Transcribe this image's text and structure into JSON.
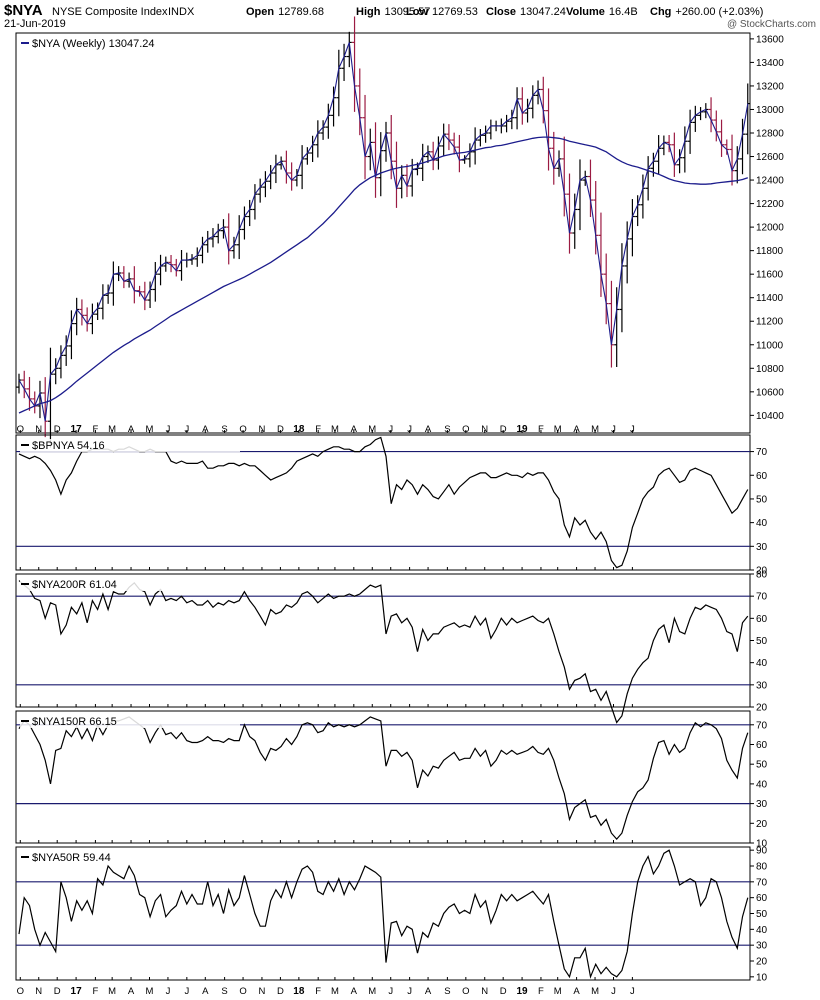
{
  "header": {
    "symbol": "$NYA",
    "name": "NYSE Composite Index",
    "exchange": "INDX",
    "date": "21-Jun-2019",
    "ohlc": [
      {
        "label": "Open",
        "value": "12789.68"
      },
      {
        "label": "High",
        "value": "13095.57"
      },
      {
        "label": "Low",
        "value": "12769.53"
      },
      {
        "label": "Close",
        "value": "13047.24"
      },
      {
        "label": "Volume",
        "value": "16.4B"
      },
      {
        "label": "Chg",
        "value": "+260.00 (+2.03%)"
      }
    ],
    "watermark": "@ StockCharts.com",
    "change_color": "#000000"
  },
  "colors": {
    "price_up": "#000000",
    "price_down": "#9b1b42",
    "moving_average": "#1c1c8c",
    "reference_line": "#1a1a6e",
    "indicator": "#000000"
  },
  "x_axis": {
    "labels": [
      {
        "text": "O",
        "week": 0.3,
        "bold": false
      },
      {
        "text": "N",
        "week": 4.6,
        "bold": false
      },
      {
        "text": "D",
        "week": 8.9,
        "bold": false
      },
      {
        "text": "17",
        "week": 13.3,
        "bold": true
      },
      {
        "text": "F",
        "week": 17.8,
        "bold": false
      },
      {
        "text": "M",
        "week": 21.7,
        "bold": false
      },
      {
        "text": "A",
        "week": 26.1,
        "bold": false
      },
      {
        "text": "M",
        "week": 30.4,
        "bold": false
      },
      {
        "text": "J",
        "week": 34.7,
        "bold": false
      },
      {
        "text": "J",
        "week": 39.1,
        "bold": false
      },
      {
        "text": "A",
        "week": 43.4,
        "bold": false
      },
      {
        "text": "S",
        "week": 47.9,
        "bold": false
      },
      {
        "text": "O",
        "week": 52.2,
        "bold": false
      },
      {
        "text": "N",
        "week": 56.6,
        "bold": false
      },
      {
        "text": "D",
        "week": 60.9,
        "bold": false
      },
      {
        "text": "18",
        "week": 65.2,
        "bold": true
      },
      {
        "text": "F",
        "week": 69.7,
        "bold": false
      },
      {
        "text": "M",
        "week": 73.6,
        "bold": false
      },
      {
        "text": "A",
        "week": 78.0,
        "bold": false
      },
      {
        "text": "M",
        "week": 82.3,
        "bold": false
      },
      {
        "text": "J",
        "week": 86.6,
        "bold": false
      },
      {
        "text": "J",
        "week": 91.0,
        "bold": false
      },
      {
        "text": "A",
        "week": 95.3,
        "bold": false
      },
      {
        "text": "S",
        "week": 99.8,
        "bold": false
      },
      {
        "text": "O",
        "week": 104.1,
        "bold": false
      },
      {
        "text": "N",
        "week": 108.5,
        "bold": false
      },
      {
        "text": "D",
        "week": 112.8,
        "bold": false
      },
      {
        "text": "19",
        "week": 117.2,
        "bold": true
      },
      {
        "text": "F",
        "week": 121.6,
        "bold": false
      },
      {
        "text": "M",
        "week": 125.5,
        "bold": false
      },
      {
        "text": "A",
        "week": 129.9,
        "bold": false
      },
      {
        "text": "M",
        "week": 134.2,
        "bold": false
      },
      {
        "text": "J",
        "week": 138.5,
        "bold": false
      },
      {
        "text": "J",
        "week": 142.9,
        "bold": false
      }
    ]
  },
  "chart_data": [
    {
      "type": "ohlc",
      "label": "$NYA (Weekly) 13047.24",
      "interval": "weekly",
      "y_ticks": [
        10400,
        10600,
        10800,
        11000,
        11200,
        11400,
        11600,
        11800,
        12000,
        12200,
        12400,
        12600,
        12800,
        13000,
        13200,
        13400,
        13600
      ],
      "ylim": [
        10250,
        13650
      ],
      "close": [
        10700,
        10625,
        10540,
        10480,
        10590,
        10350,
        10750,
        10800,
        10910,
        10990,
        11180,
        11300,
        11250,
        11180,
        11260,
        11310,
        11420,
        11440,
        11600,
        11610,
        11540,
        11560,
        11460,
        11450,
        11380,
        11470,
        11600,
        11670,
        11700,
        11680,
        11630,
        11720,
        11720,
        11730,
        11760,
        11850,
        11900,
        11920,
        11970,
        12000,
        11800,
        11850,
        11980,
        12090,
        12150,
        12280,
        12340,
        12390,
        12460,
        12530,
        12560,
        12460,
        12400,
        12440,
        12580,
        12630,
        12700,
        12800,
        12850,
        12950,
        13100,
        13350,
        13450,
        13570,
        13200,
        12930,
        12600,
        12720,
        12420,
        12650,
        12800,
        12560,
        12330,
        12440,
        12350,
        12490,
        12500,
        12600,
        12640,
        12570,
        12690,
        12790,
        12740,
        12680,
        12570,
        12580,
        12640,
        12740,
        12780,
        12800,
        12860,
        12860,
        12860,
        12900,
        12930,
        13090,
        12970,
        13010,
        13120,
        13170,
        12990,
        12670,
        12500,
        12580,
        12280,
        11950,
        12150,
        12400,
        12430,
        12230,
        11930,
        11600,
        11350,
        11000,
        11300,
        11670,
        11900,
        12090,
        12190,
        12330,
        12500,
        12560,
        12670,
        12720,
        12700,
        12530,
        12590,
        12730,
        12890,
        12950,
        12980,
        13000,
        12910,
        12810,
        12700,
        12660,
        12480,
        12580,
        12790,
        13050
      ],
      "series": [
        {
          "name": "MA",
          "values": [
            10420,
            10440,
            10460,
            10480,
            10500,
            10510,
            10525,
            10550,
            10580,
            10615,
            10650,
            10690,
            10725,
            10760,
            10795,
            10830,
            10865,
            10900,
            10935,
            10965,
            10995,
            11020,
            11050,
            11075,
            11100,
            11125,
            11155,
            11185,
            11215,
            11245,
            11270,
            11295,
            11320,
            11345,
            11370,
            11395,
            11420,
            11445,
            11470,
            11495,
            11515,
            11535,
            11555,
            11575,
            11600,
            11625,
            11650,
            11675,
            11700,
            11730,
            11760,
            11790,
            11820,
            11850,
            11880,
            11910,
            11950,
            11990,
            12030,
            12075,
            12120,
            12170,
            12220,
            12270,
            12320,
            12360,
            12390,
            12420,
            12440,
            12460,
            12475,
            12490,
            12500,
            12510,
            12515,
            12525,
            12535,
            12545,
            12560,
            12575,
            12590,
            12605,
            12615,
            12625,
            12630,
            12635,
            12645,
            12655,
            12665,
            12675,
            12680,
            12690,
            12695,
            12705,
            12715,
            12725,
            12735,
            12745,
            12755,
            12762,
            12765,
            12765,
            12760,
            12755,
            12745,
            12730,
            12720,
            12710,
            12700,
            12690,
            12680,
            12660,
            12640,
            12610,
            12580,
            12555,
            12535,
            12520,
            12510,
            12495,
            12480,
            12465,
            12450,
            12430,
            12410,
            12395,
            12385,
            12375,
            12370,
            12368,
            12365,
            12365,
            12368,
            12375,
            12380,
            12385,
            12390,
            12395,
            12405,
            12420
          ]
        }
      ]
    },
    {
      "type": "line",
      "label": "$BPNYA 54.16",
      "y_ticks": [
        20,
        30,
        40,
        50,
        60,
        70
      ],
      "ylim": [
        20,
        77
      ],
      "reference_lines": [
        70,
        30
      ],
      "series": [
        {
          "name": "$BPNYA",
          "values": [
            69,
            68,
            67,
            68,
            67,
            65,
            62,
            58,
            52,
            58,
            61,
            66,
            70,
            70,
            71,
            71,
            71,
            71,
            70,
            71,
            71,
            72,
            71,
            70,
            70,
            71,
            70,
            70,
            70,
            66,
            65,
            66,
            65,
            65,
            65,
            66,
            63,
            63,
            64,
            64,
            65,
            65,
            64,
            65,
            64,
            64,
            62,
            60,
            58,
            59,
            60,
            61,
            63,
            66,
            67,
            68,
            69,
            68,
            70,
            71,
            72,
            72,
            71,
            71,
            70,
            70,
            72,
            73,
            75,
            76,
            68,
            48,
            56,
            54,
            58,
            56,
            52,
            56,
            54,
            51,
            50,
            53,
            56,
            52,
            55,
            57,
            59,
            60,
            61,
            61,
            59,
            59,
            60,
            61,
            60,
            60,
            59,
            61,
            60,
            61,
            61,
            58,
            53,
            50,
            39,
            34,
            42,
            39,
            41,
            36,
            33,
            36,
            32,
            24,
            21,
            22,
            28,
            38,
            44,
            50,
            53,
            55,
            60,
            62,
            63,
            60,
            57,
            58,
            62,
            63,
            62,
            61,
            60,
            56,
            52,
            48,
            44,
            46,
            50,
            54
          ]
        }
      ]
    },
    {
      "type": "line",
      "label": "$NYA200R 61.04",
      "y_ticks": [
        20,
        30,
        40,
        50,
        60,
        70,
        80
      ],
      "ylim": [
        20,
        80
      ],
      "reference_lines": [
        70,
        30
      ],
      "series": [
        {
          "name": "$NYA200R",
          "values": [
            77,
            75,
            73,
            69,
            68,
            60,
            67,
            66,
            53,
            57,
            65,
            62,
            67,
            58,
            68,
            64,
            71,
            64,
            72,
            71,
            71,
            74,
            76,
            73,
            72,
            66,
            71,
            73,
            68,
            69,
            68,
            70,
            67,
            68,
            66,
            66,
            68,
            65,
            67,
            66,
            68,
            67,
            68,
            72,
            68,
            65,
            61,
            57,
            64,
            62,
            63,
            66,
            65,
            67,
            71,
            72,
            70,
            67,
            69,
            71,
            69,
            70,
            70,
            71,
            70,
            71,
            73,
            75,
            74,
            75,
            53,
            61,
            62,
            58,
            60,
            56,
            45,
            55,
            50,
            53,
            53,
            56,
            57,
            58,
            56,
            57,
            56,
            61,
            57,
            60,
            51,
            55,
            60,
            57,
            60,
            58,
            59,
            60,
            61,
            59,
            58,
            60,
            53,
            45,
            38,
            28,
            32,
            33,
            35,
            27,
            28,
            23,
            27,
            20,
            13,
            16,
            26,
            33,
            37,
            40,
            42,
            50,
            55,
            57,
            49,
            60,
            54,
            53,
            60,
            65,
            64,
            66,
            65,
            64,
            60,
            54,
            53,
            45,
            58,
            61
          ]
        }
      ]
    },
    {
      "type": "line",
      "label": "$NYA150R 66.15",
      "y_ticks": [
        10,
        20,
        30,
        40,
        50,
        60,
        70
      ],
      "ylim": [
        10,
        77
      ],
      "reference_lines": [
        70,
        30
      ],
      "series": [
        {
          "name": "$NYA150R",
          "values": [
            68,
            72,
            70,
            65,
            60,
            52,
            40,
            57,
            58,
            67,
            64,
            69,
            63,
            68,
            62,
            70,
            65,
            70,
            72,
            72,
            73,
            74,
            72,
            70,
            68,
            61,
            66,
            70,
            65,
            66,
            63,
            66,
            62,
            61,
            61,
            62,
            64,
            62,
            62,
            61,
            63,
            62,
            62,
            70,
            64,
            62,
            56,
            52,
            58,
            57,
            59,
            63,
            60,
            64,
            70,
            71,
            70,
            66,
            67,
            71,
            69,
            70,
            69,
            70,
            69,
            70,
            72,
            74,
            73,
            72,
            49,
            57,
            57,
            54,
            56,
            52,
            38,
            47,
            44,
            49,
            48,
            52,
            54,
            56,
            52,
            53,
            53,
            58,
            54,
            57,
            49,
            52,
            57,
            55,
            57,
            55,
            56,
            57,
            59,
            56,
            55,
            58,
            52,
            43,
            35,
            22,
            28,
            30,
            32,
            23,
            24,
            19,
            22,
            15,
            12,
            15,
            24,
            31,
            36,
            38,
            42,
            53,
            61,
            62,
            55,
            60,
            56,
            58,
            66,
            71,
            69,
            71,
            70,
            68,
            63,
            52,
            47,
            43,
            58,
            66
          ]
        }
      ]
    },
    {
      "type": "line",
      "label": "$NYA50R 59.44",
      "y_ticks": [
        10,
        20,
        30,
        40,
        50,
        60,
        70,
        80,
        90
      ],
      "ylim": [
        8,
        92
      ],
      "reference_lines": [
        70,
        30
      ],
      "series": [
        {
          "name": "$NYA50R",
          "values": [
            37,
            60,
            55,
            40,
            30,
            38,
            32,
            26,
            70,
            60,
            45,
            58,
            52,
            58,
            50,
            72,
            68,
            80,
            76,
            74,
            72,
            80,
            74,
            62,
            60,
            48,
            58,
            62,
            48,
            52,
            55,
            64,
            56,
            62,
            56,
            56,
            70,
            55,
            62,
            50,
            65,
            55,
            60,
            74,
            62,
            50,
            42,
            42,
            58,
            65,
            60,
            70,
            60,
            70,
            78,
            80,
            76,
            64,
            62,
            70,
            64,
            72,
            62,
            70,
            65,
            72,
            80,
            78,
            76,
            73,
            19,
            44,
            45,
            36,
            42,
            40,
            25,
            38,
            35,
            44,
            42,
            50,
            54,
            56,
            50,
            52,
            50,
            62,
            54,
            58,
            44,
            52,
            62,
            58,
            62,
            58,
            60,
            62,
            64,
            60,
            56,
            62,
            45,
            30,
            15,
            10,
            22,
            22,
            28,
            10,
            18,
            12,
            16,
            12,
            10,
            14,
            26,
            50,
            70,
            80,
            86,
            75,
            80,
            88,
            90,
            80,
            68,
            70,
            72,
            70,
            55,
            60,
            72,
            70,
            60,
            45,
            35,
            28,
            48,
            60
          ]
        }
      ]
    }
  ]
}
